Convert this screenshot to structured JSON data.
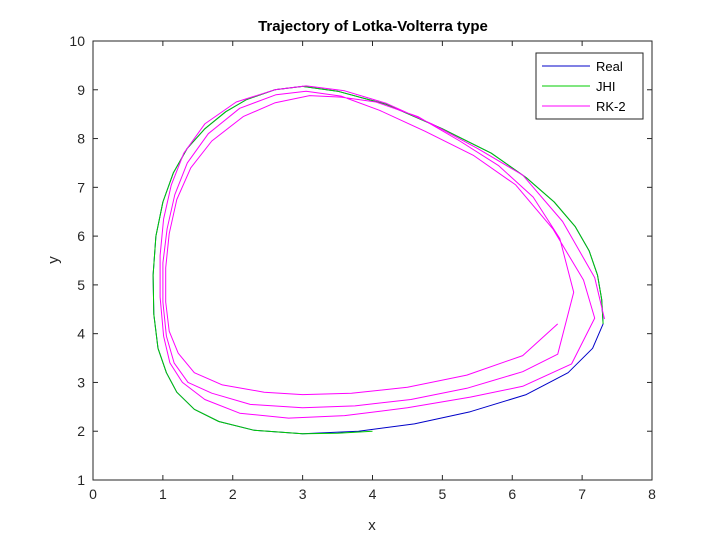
{
  "chart_data": {
    "type": "line",
    "title": "Trajectory of Lotka-Volterra type",
    "xlabel": "x",
    "ylabel": "y",
    "xlim": [
      0,
      8
    ],
    "ylim": [
      1,
      10
    ],
    "xticks": [
      0,
      1,
      2,
      3,
      4,
      5,
      6,
      7,
      8
    ],
    "yticks": [
      1,
      2,
      3,
      4,
      5,
      6,
      7,
      8,
      9,
      10
    ],
    "grid": false,
    "legend_position": "top-right",
    "series": [
      {
        "name": "Real",
        "color": "#0000c8",
        "x": [
          7.3,
          7.28,
          7.22,
          7.1,
          6.9,
          6.6,
          6.2,
          5.7,
          5.0,
          4.2,
          3.5,
          3.0,
          2.6,
          2.2,
          1.9,
          1.6,
          1.35,
          1.15,
          1.0,
          0.9,
          0.86,
          0.87,
          0.93,
          1.05,
          1.2,
          1.45,
          1.8,
          2.3,
          3.0,
          3.8,
          4.6,
          5.4,
          6.2,
          6.8,
          7.15,
          7.3
        ],
        "y": [
          4.2,
          4.7,
          5.2,
          5.7,
          6.2,
          6.7,
          7.2,
          7.7,
          8.2,
          8.7,
          8.97,
          9.07,
          9.0,
          8.8,
          8.55,
          8.2,
          7.8,
          7.3,
          6.7,
          6.0,
          5.2,
          4.4,
          3.7,
          3.2,
          2.8,
          2.45,
          2.2,
          2.02,
          1.95,
          2.0,
          2.15,
          2.4,
          2.75,
          3.2,
          3.7,
          4.2
        ]
      },
      {
        "name": "JHI",
        "color": "#00cc00",
        "x": [
          7.3,
          7.28,
          7.22,
          7.1,
          6.9,
          6.6,
          6.2,
          5.7,
          5.0,
          4.2,
          3.5,
          3.0,
          2.6,
          2.2,
          1.9,
          1.6,
          1.35,
          1.15,
          1.0,
          0.9,
          0.86,
          0.87,
          0.93,
          1.05,
          1.2,
          1.45,
          1.8,
          2.3,
          3.0,
          3.5,
          4.0
        ],
        "y": [
          4.2,
          4.7,
          5.2,
          5.7,
          6.2,
          6.7,
          7.2,
          7.7,
          8.2,
          8.7,
          8.97,
          9.07,
          9.0,
          8.8,
          8.55,
          8.2,
          7.8,
          7.3,
          6.7,
          6.0,
          5.2,
          4.4,
          3.7,
          3.2,
          2.8,
          2.45,
          2.2,
          2.02,
          1.95,
          1.96,
          2.0
        ]
      },
      {
        "name": "RK-2",
        "color": "#ff00ff",
        "x": [
          7.32,
          7.18,
          6.72,
          6.15,
          5.5,
          4.85,
          4.2,
          3.6,
          3.05,
          2.6,
          2.05,
          1.6,
          1.3,
          1.12,
          1.01,
          0.96,
          0.96,
          1.01,
          1.1,
          1.28,
          1.6,
          2.1,
          2.8,
          3.6,
          4.5,
          5.4,
          6.15,
          6.85,
          7.18,
          7.02,
          6.58,
          6.05,
          5.45,
          4.75,
          4.1,
          3.55,
          3.05,
          2.62,
          2.1,
          1.65,
          1.35,
          1.17,
          1.06,
          1.0,
          1.0,
          1.05,
          1.16,
          1.36,
          1.7,
          2.25,
          3.0,
          3.75,
          4.55,
          5.35,
          6.15,
          6.65,
          6.88,
          6.68,
          6.3,
          5.8,
          5.25,
          4.65,
          4.05,
          3.55,
          3.1,
          2.6,
          2.15,
          1.7,
          1.4,
          1.2,
          1.09,
          1.04,
          1.04,
          1.09,
          1.22,
          1.45,
          1.85,
          2.45,
          3.0,
          3.7,
          4.5,
          5.35,
          6.15,
          6.65
        ],
        "y": [
          4.3,
          5.15,
          6.3,
          7.25,
          7.8,
          8.3,
          8.72,
          8.98,
          9.08,
          9.0,
          8.75,
          8.3,
          7.7,
          7.05,
          6.35,
          5.6,
          4.75,
          3.95,
          3.4,
          3.0,
          2.65,
          2.37,
          2.27,
          2.32,
          2.48,
          2.7,
          2.92,
          3.38,
          4.32,
          5.1,
          6.15,
          7.05,
          7.65,
          8.15,
          8.58,
          8.87,
          8.97,
          8.9,
          8.62,
          8.1,
          7.5,
          6.85,
          6.15,
          5.45,
          4.65,
          3.95,
          3.4,
          3.0,
          2.78,
          2.55,
          2.48,
          2.52,
          2.65,
          2.88,
          3.22,
          3.58,
          4.85,
          5.95,
          6.8,
          7.45,
          7.95,
          8.45,
          8.75,
          8.85,
          8.88,
          8.73,
          8.45,
          7.95,
          7.4,
          6.75,
          6.05,
          5.35,
          4.65,
          4.05,
          3.6,
          3.2,
          2.95,
          2.8,
          2.75,
          2.78,
          2.9,
          3.15,
          3.55,
          4.2
        ]
      }
    ]
  }
}
